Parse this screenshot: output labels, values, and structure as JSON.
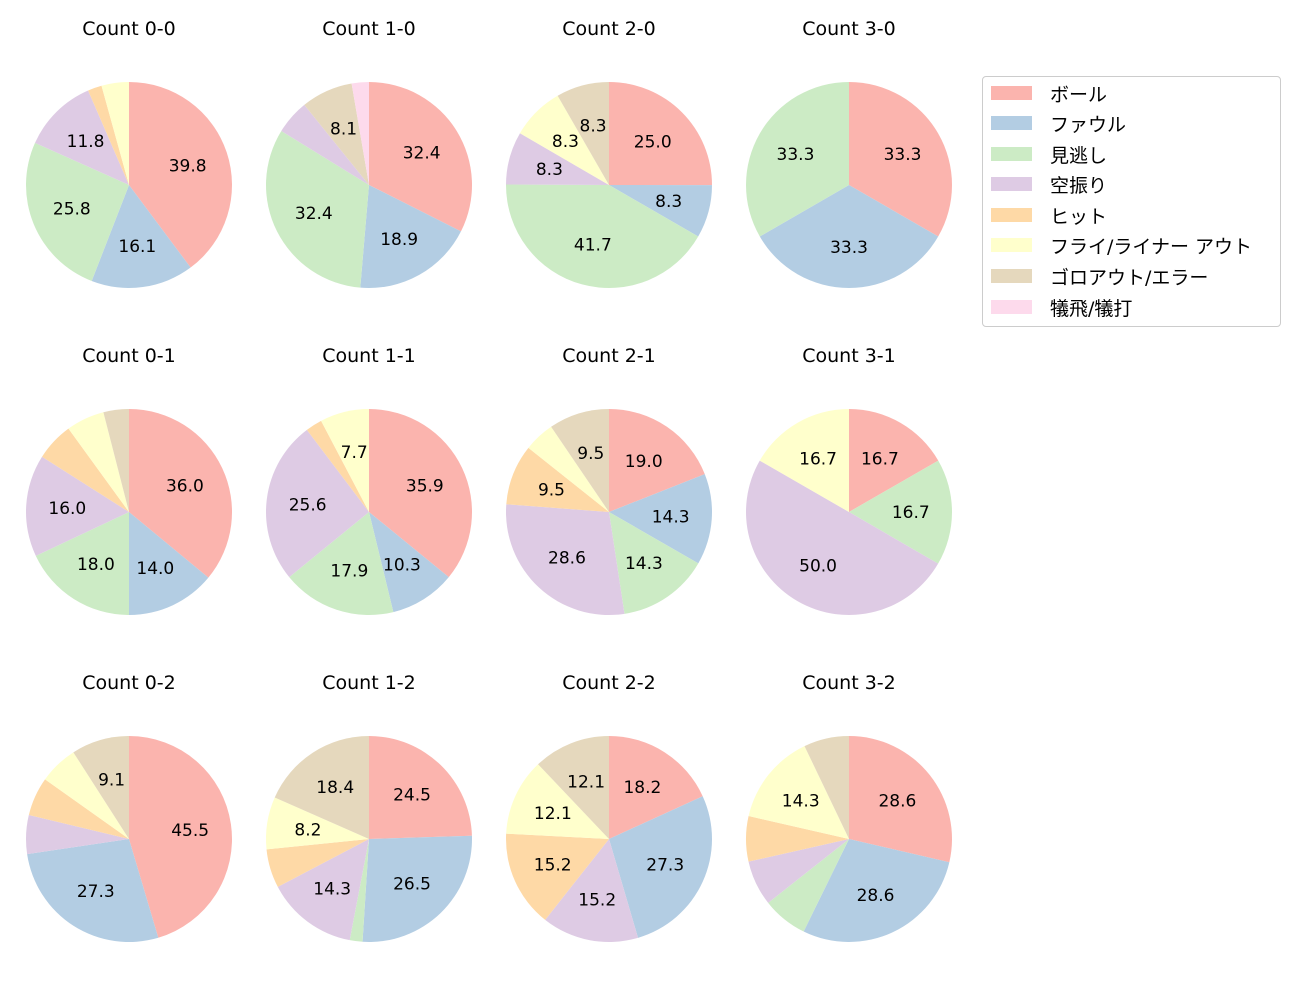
{
  "chart_data": [
    {
      "type": "pie",
      "title": "Count 0-0",
      "values": [
        39.8,
        16.1,
        25.8,
        11.8,
        2.2,
        4.3,
        0,
        0
      ]
    },
    {
      "type": "pie",
      "title": "Count 1-0",
      "values": [
        32.4,
        18.9,
        32.4,
        5.4,
        0,
        0,
        8.1,
        2.7
      ]
    },
    {
      "type": "pie",
      "title": "Count 2-0",
      "values": [
        25.0,
        8.3,
        41.7,
        8.3,
        0,
        8.3,
        8.3,
        0
      ]
    },
    {
      "type": "pie",
      "title": "Count 3-0",
      "values": [
        33.3,
        33.3,
        33.3,
        0,
        0,
        0,
        0,
        0
      ]
    },
    {
      "type": "pie",
      "title": "Count 0-1",
      "values": [
        36.0,
        14.0,
        18.0,
        16.0,
        6.0,
        6.0,
        4.0,
        0
      ]
    },
    {
      "type": "pie",
      "title": "Count 1-1",
      "values": [
        35.9,
        10.3,
        17.9,
        25.6,
        2.6,
        7.7,
        0,
        0
      ]
    },
    {
      "type": "pie",
      "title": "Count 2-1",
      "values": [
        19.0,
        14.3,
        14.3,
        28.6,
        9.5,
        4.8,
        9.5,
        0
      ]
    },
    {
      "type": "pie",
      "title": "Count 3-1",
      "values": [
        16.7,
        0,
        16.7,
        50.0,
        0,
        16.7,
        0,
        0
      ]
    },
    {
      "type": "pie",
      "title": "Count 0-2",
      "values": [
        45.5,
        27.3,
        0,
        6.1,
        6.1,
        6.1,
        9.1,
        0
      ]
    },
    {
      "type": "pie",
      "title": "Count 1-2",
      "values": [
        24.5,
        26.5,
        2.0,
        14.3,
        6.1,
        8.2,
        18.4,
        0
      ]
    },
    {
      "type": "pie",
      "title": "Count 2-2",
      "values": [
        18.2,
        27.3,
        0,
        15.2,
        15.2,
        12.1,
        12.1,
        0
      ]
    },
    {
      "type": "pie",
      "title": "Count 3-2",
      "values": [
        28.6,
        28.6,
        7.1,
        7.1,
        7.1,
        14.3,
        7.1,
        0
      ]
    }
  ],
  "legend": {
    "placement": "right",
    "labels": [
      "ボール",
      "ファウル",
      "見逃し",
      "空振り",
      "ヒット",
      "フライ/ライナー アウト",
      "ゴロアウト/エラー",
      "犠飛/犠打"
    ],
    "colors": [
      "#fbb4ae",
      "#b3cde3",
      "#ccebc5",
      "#decbe4",
      "#fed9a6",
      "#ffffcc",
      "#e5d8bd",
      "#fddaec"
    ]
  },
  "start_angle": "90° (top), clockwise"
}
